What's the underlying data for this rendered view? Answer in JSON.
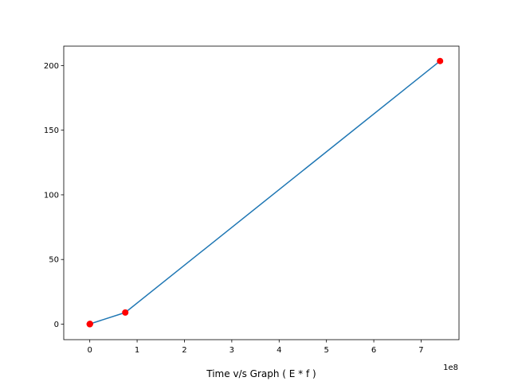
{
  "chart_data": {
    "type": "line",
    "title": "",
    "xlabel": "Time v/s Graph ( E * f )",
    "ylabel": "",
    "x_offset_label": "1e8",
    "x_scale": 100000000,
    "xlim": [
      -55000000,
      780000000
    ],
    "ylim": [
      -12,
      215
    ],
    "x_ticks": [
      0,
      100000000,
      200000000,
      300000000,
      400000000,
      500000000,
      600000000,
      700000000
    ],
    "x_tick_labels": [
      "0",
      "1",
      "2",
      "3",
      "4",
      "5",
      "6",
      "7"
    ],
    "y_ticks": [
      0,
      50,
      100,
      150,
      200
    ],
    "y_tick_labels": [
      "0",
      "50",
      "100",
      "150",
      "200"
    ],
    "grid": false,
    "colors": {
      "line": "#1f77b4",
      "marker": "#ff0000"
    },
    "series": [
      {
        "x": [
          0,
          5000,
          80000,
          500000,
          75000000,
          740000000
        ],
        "y": [
          0,
          0.01,
          0.05,
          0.2,
          9,
          203.5
        ]
      }
    ]
  }
}
